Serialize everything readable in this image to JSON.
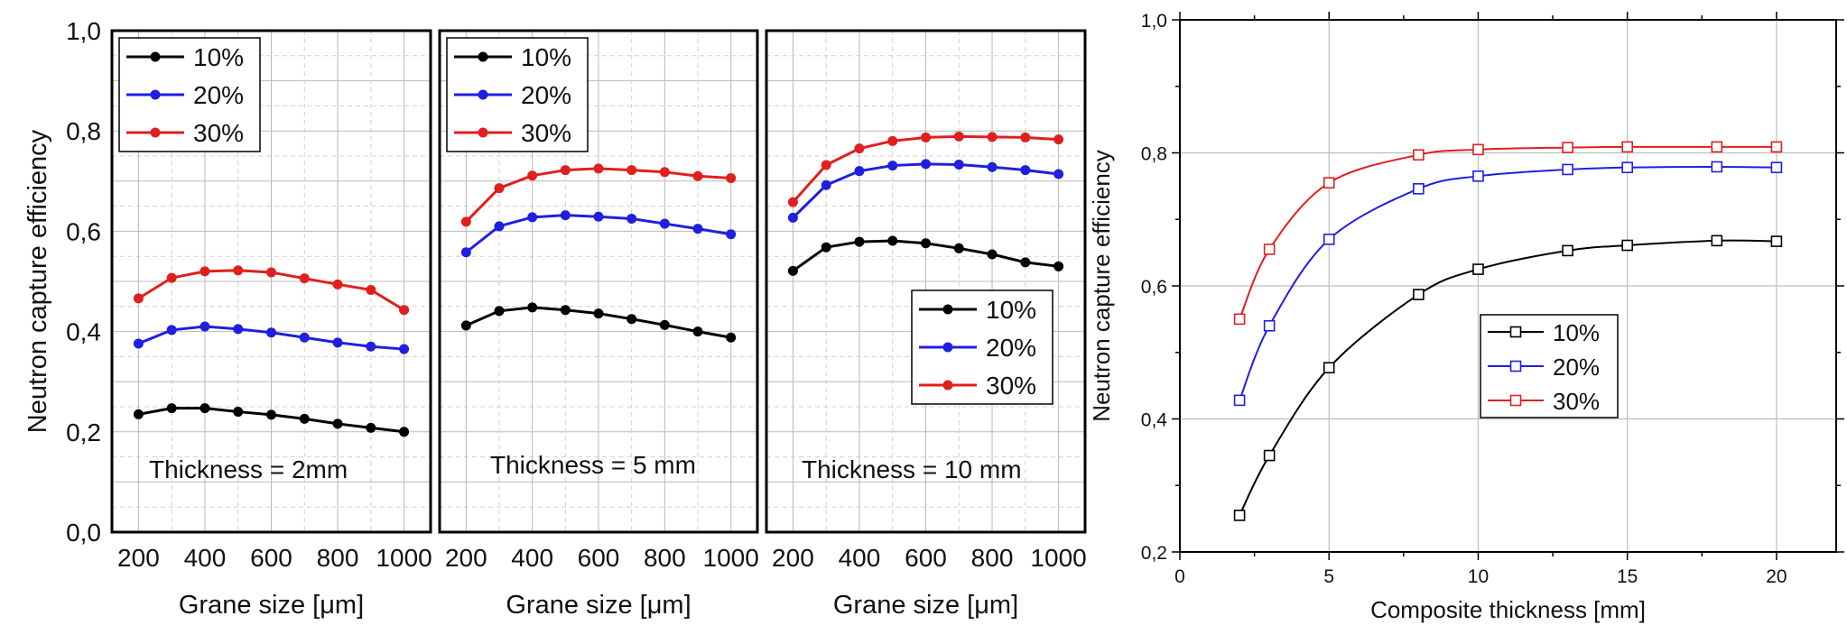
{
  "chart_data": [
    {
      "type": "line",
      "annotation": "Thickness = 2mm",
      "xlabel": "Grane size [μm]",
      "ylabel": "Neutron capture efficiency",
      "xlim": [
        120,
        1080
      ],
      "ylim": [
        0.0,
        1.0
      ],
      "xticks": [
        "200",
        "400",
        "600",
        "800",
        "1000"
      ],
      "yticks": [
        "0,0",
        "0,2",
        "0,4",
        "0,6",
        "0,8",
        "1,0"
      ],
      "legend_position": "top-left",
      "grid": true,
      "x": [
        200,
        300,
        400,
        500,
        600,
        700,
        800,
        900,
        1000
      ],
      "series": [
        {
          "name": "10%",
          "color": "#000000",
          "values": [
            0.235,
            0.247,
            0.247,
            0.24,
            0.234,
            0.226,
            0.216,
            0.208,
            0.2
          ]
        },
        {
          "name": "20%",
          "color": "#1f1fe0",
          "values": [
            0.376,
            0.403,
            0.41,
            0.405,
            0.398,
            0.388,
            0.378,
            0.37,
            0.365
          ]
        },
        {
          "name": "30%",
          "color": "#e01f1f",
          "values": [
            0.466,
            0.507,
            0.52,
            0.522,
            0.518,
            0.506,
            0.494,
            0.483,
            0.443
          ]
        }
      ]
    },
    {
      "type": "line",
      "annotation": "Thickness = 5 mm",
      "xlabel": "Grane size [μm]",
      "xlim": [
        120,
        1080
      ],
      "ylim": [
        0.0,
        1.0
      ],
      "xticks": [
        "200",
        "400",
        "600",
        "800",
        "1000"
      ],
      "legend_position": "top-left",
      "grid": true,
      "x": [
        200,
        300,
        400,
        500,
        600,
        700,
        800,
        900,
        1000
      ],
      "series": [
        {
          "name": "10%",
          "color": "#000000",
          "values": [
            0.412,
            0.441,
            0.448,
            0.443,
            0.436,
            0.425,
            0.413,
            0.4,
            0.388
          ]
        },
        {
          "name": "20%",
          "color": "#1f1fe0",
          "values": [
            0.558,
            0.61,
            0.628,
            0.632,
            0.629,
            0.625,
            0.615,
            0.605,
            0.594
          ]
        },
        {
          "name": "30%",
          "color": "#e01f1f",
          "values": [
            0.619,
            0.686,
            0.711,
            0.722,
            0.725,
            0.722,
            0.718,
            0.71,
            0.706
          ]
        }
      ]
    },
    {
      "type": "line",
      "annotation": "Thickness = 10 mm",
      "xlabel": "Grane size [μm]",
      "xlim": [
        120,
        1080
      ],
      "ylim": [
        0.0,
        1.0
      ],
      "xticks": [
        "200",
        "400",
        "600",
        "800",
        "1000"
      ],
      "legend_position": "center-right",
      "grid": true,
      "x": [
        200,
        300,
        400,
        500,
        600,
        700,
        800,
        900,
        1000
      ],
      "series": [
        {
          "name": "10%",
          "color": "#000000",
          "values": [
            0.521,
            0.568,
            0.579,
            0.581,
            0.576,
            0.566,
            0.554,
            0.538,
            0.53
          ]
        },
        {
          "name": "20%",
          "color": "#1f1fe0",
          "values": [
            0.627,
            0.692,
            0.72,
            0.731,
            0.734,
            0.733,
            0.728,
            0.722,
            0.714
          ]
        },
        {
          "name": "30%",
          "color": "#e01f1f",
          "values": [
            0.658,
            0.732,
            0.765,
            0.78,
            0.787,
            0.789,
            0.788,
            0.787,
            0.783
          ]
        }
      ]
    },
    {
      "type": "line",
      "xlabel": "Composite thickness [mm]",
      "ylabel": "Neutron capture efficiency",
      "xlim": [
        0,
        22
      ],
      "ylim": [
        0.2,
        1.0
      ],
      "xticks": [
        "0",
        "5",
        "10",
        "15",
        "20"
      ],
      "yticks": [
        "0,2",
        "0,4",
        "0,6",
        "0,8",
        "1,0"
      ],
      "legend_position": "center",
      "grid": true,
      "marker": "open-square",
      "x": [
        2,
        3,
        5,
        8,
        10,
        13,
        15,
        18,
        20
      ],
      "series": [
        {
          "name": "10%",
          "color": "#000000",
          "values": [
            0.255,
            0.345,
            0.477,
            0.587,
            0.625,
            0.653,
            0.661,
            0.668,
            0.667
          ]
        },
        {
          "name": "20%",
          "color": "#1f1fe0",
          "values": [
            0.428,
            0.54,
            0.67,
            0.746,
            0.765,
            0.775,
            0.778,
            0.779,
            0.778
          ]
        },
        {
          "name": "30%",
          "color": "#e01f1f",
          "values": [
            0.55,
            0.655,
            0.755,
            0.797,
            0.805,
            0.808,
            0.809,
            0.809,
            0.809
          ]
        }
      ]
    }
  ]
}
